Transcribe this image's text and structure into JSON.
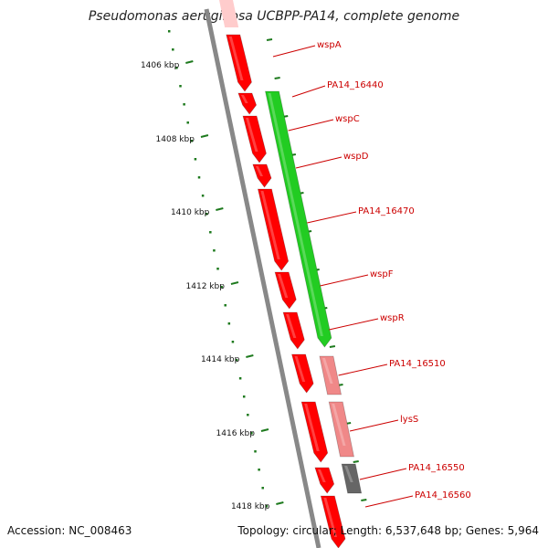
{
  "title": "Pseudomonas aeruginosa UCBPP-PA14, complete genome",
  "footer": {
    "accession": "Accession: NC_008463",
    "summary": "Topology: circular; Length: 6,537,648 bp; Genes: 5,964"
  },
  "colors": {
    "forward_gene": "#ff0000",
    "reverse_gene": "#22cc22",
    "pale_gene": "#f08888",
    "gray_gene": "#666666",
    "tick": "#1e7a1e",
    "label": "#cc0000",
    "backbone": "#888888"
  },
  "scale_ticks": [
    "1406 kbp",
    "1408 kbp",
    "1410 kbp",
    "1412 kbp",
    "1414 kbp",
    "1416 kbp",
    "1418 kbp"
  ],
  "genes": [
    {
      "name": "wspA",
      "strand": "+",
      "color": "red"
    },
    {
      "name": "PA14_16440",
      "strand": "-",
      "color": "green"
    },
    {
      "name": "wspC",
      "strand": "+",
      "color": "red"
    },
    {
      "name": "wspD",
      "strand": "+",
      "color": "red"
    },
    {
      "name": "PA14_16470",
      "strand": "+",
      "color": "red"
    },
    {
      "name": "wspF",
      "strand": "+",
      "color": "red"
    },
    {
      "name": "wspR",
      "strand": "+",
      "color": "red"
    },
    {
      "name": "PA14_16510",
      "strand": "+",
      "color": "red"
    },
    {
      "name": "lysS",
      "strand": "-",
      "color": "pale"
    },
    {
      "name": "PA14_16550",
      "strand": "-",
      "color": "gray"
    },
    {
      "name": "PA14_16560",
      "strand": "+",
      "color": "red"
    }
  ]
}
